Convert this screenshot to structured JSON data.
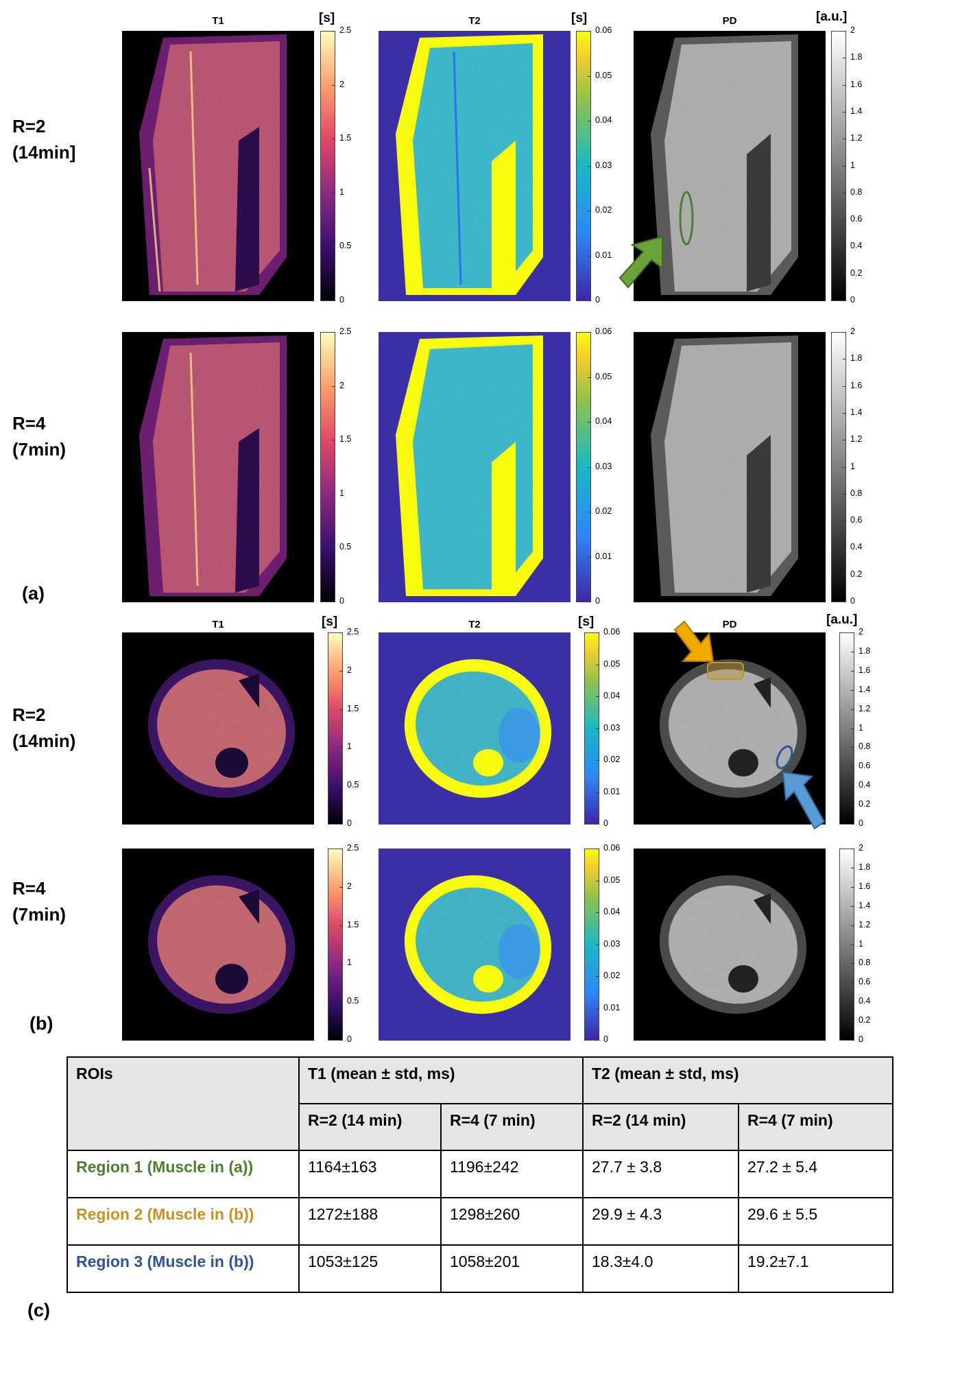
{
  "panel_a": {
    "label": "(a)",
    "rows": [
      {
        "label": "R=2\n(14min]"
      },
      {
        "label": "R=4\n(7min)"
      }
    ],
    "titles": {
      "t1": "T1",
      "t2": "T2",
      "pd": "PD"
    },
    "units": {
      "t1": "[s]",
      "t2": "[s]",
      "pd": "[a.u.]"
    }
  },
  "panel_b": {
    "label": "(b)",
    "rows": [
      {
        "label": "R=2\n(14min)"
      },
      {
        "label": "R=4\n(7min)"
      }
    ],
    "titles": {
      "t1": "T1",
      "t2": "T2",
      "pd": "PD"
    },
    "units": {
      "t1": "[s]",
      "t2": "[s]",
      "pd": "[a.u.]"
    }
  },
  "colorbars": {
    "t1": [
      "2.5",
      "2",
      "1.5",
      "1",
      "0.5",
      "0"
    ],
    "t2": [
      "0.06",
      "0.05",
      "0.04",
      "0.03",
      "0.02",
      "0.01",
      "0"
    ],
    "pd": [
      "2",
      "1.8",
      "1.6",
      "1.4",
      "1.2",
      "1",
      "0.8",
      "0.6",
      "0.4",
      "0.2",
      "0"
    ]
  },
  "colors": {
    "region1": "#4f7d2f",
    "region2": "#c9921e",
    "region3": "#2f5597",
    "t2_background": "#3b2fa8"
  },
  "table": {
    "label": "(c)",
    "header": {
      "rois": "ROIs",
      "t1": "T1 (mean ± std, ms)",
      "t2": "T2 (mean ± std, ms)",
      "sub": [
        "R=2 (14 min)",
        "R=4 (7 min)",
        "R=2 (14 min)",
        "R=4 (7 min)"
      ]
    },
    "rows": [
      {
        "roi": "Region 1 (Muscle in (a))",
        "values": [
          "1164±163",
          "1196±242",
          "27.7 ± 3.8",
          "27.2 ± 5.4"
        ]
      },
      {
        "roi": "Region 2 (Muscle in (b))",
        "values": [
          "1272±188",
          "1298±260",
          "29.9 ± 4.3",
          "29.6 ± 5.5"
        ]
      },
      {
        "roi": "Region 3 (Muscle in (b))",
        "values": [
          "1053±125",
          "1058±201",
          "18.3±4.0",
          "19.2±7.1"
        ]
      }
    ]
  }
}
